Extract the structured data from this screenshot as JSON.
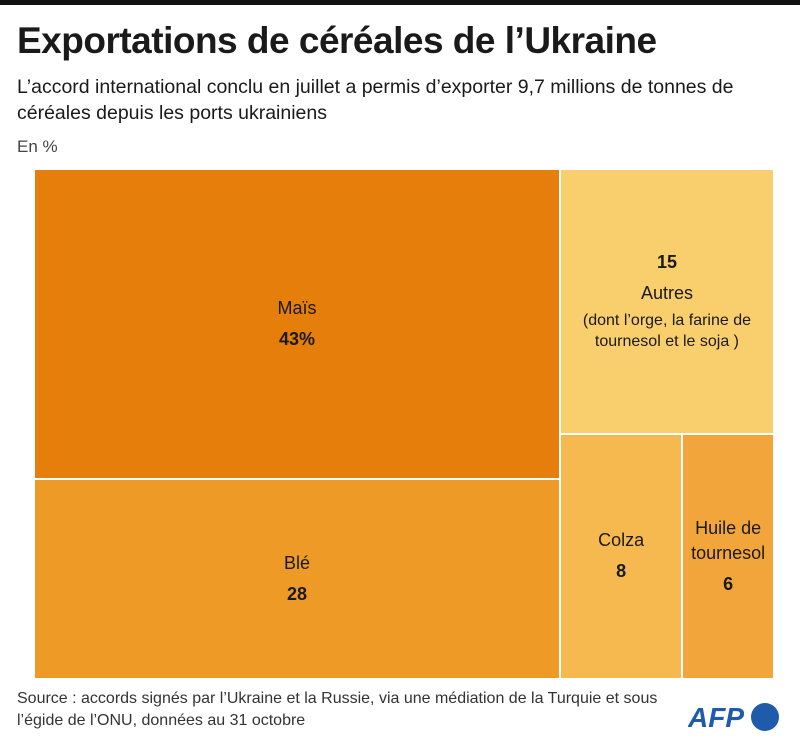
{
  "title": "Exportations de céréales de l’Ukraine",
  "subtitle": "L’accord international conclu en juillet a permis d’exporter 9,7 millions de tonnes de céréales depuis les ports ukrainiens",
  "unit": "En %",
  "source": "Source : accords signés par l’Ukraine et la Russie, via une médiation de la Turquie et sous l’égide de l’ONU, données au 31 octobre",
  "logo": "AFP",
  "chart_data": {
    "type": "treemap",
    "items": [
      {
        "name": "Maïs",
        "value": 43,
        "label": "43%",
        "color": "#e57e0a"
      },
      {
        "name": "Blé",
        "value": 28,
        "label": "28",
        "color": "#ee9a27"
      },
      {
        "name": "Autres",
        "value": 15,
        "label": "15",
        "note": "(dont l’orge, la farine de tournesol et le soja )",
        "color": "#f8cf6c"
      },
      {
        "name": "Colza",
        "value": 8,
        "label": "8",
        "color": "#f6b94f"
      },
      {
        "name": "Huile de tournesol",
        "value": 6,
        "label": "6",
        "color": "#f2a53a"
      }
    ]
  }
}
